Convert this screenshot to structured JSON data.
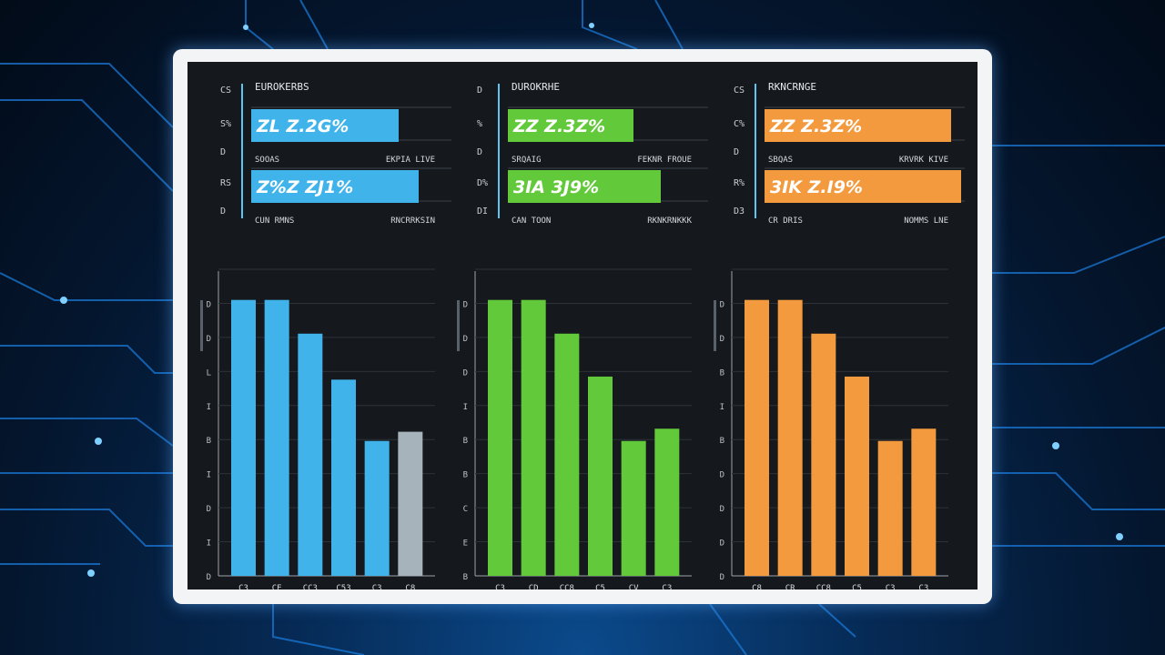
{
  "colors": {
    "blue": "#3fb3ea",
    "green": "#62c93a",
    "orange": "#f39a3e",
    "gray": "#a7b3bb"
  },
  "chart_data": [
    {
      "type": "bar",
      "orientation": "horizontal",
      "title": "EUROKERBS",
      "color": "#3fb3ea",
      "axis_labels": [
        "CS",
        "S%",
        "D",
        "RS",
        "D"
      ],
      "values": [
        0.74,
        0.84
      ],
      "value_labels": [
        "ZL Z.2G%",
        "Z%Z ZJ1%"
      ],
      "left_labels": [
        "SOOAS",
        "CUN RMNS"
      ],
      "right_labels": [
        "EKPIA LIVE",
        "RNCRRKSIN"
      ]
    },
    {
      "type": "bar",
      "orientation": "horizontal",
      "title": "DUROKRHE",
      "color": "#62c93a",
      "axis_labels": [
        "D",
        "%",
        "D",
        "D%",
        "DI"
      ],
      "values": [
        0.63,
        0.77
      ],
      "value_labels": [
        "ZZ Z.3Z%",
        "3IA 3J9%"
      ],
      "left_labels": [
        "SRQAIG",
        "CAN TOON"
      ],
      "right_labels": [
        "FEKNR FROUE",
        "RKNKRNKKK"
      ]
    },
    {
      "type": "bar",
      "orientation": "horizontal",
      "title": "RKNCRNGE",
      "color": "#f39a3e",
      "axis_labels": [
        "CS",
        "C%",
        "D",
        "R%",
        "D3"
      ],
      "values": [
        0.94,
        0.99
      ],
      "value_labels": [
        "ZZ Z.3Z%",
        "3IK Z.I9%"
      ],
      "left_labels": [
        "SBQAS",
        "CR DRIS"
      ],
      "right_labels": [
        "KRVRK KIVE",
        "NOMMS LNE"
      ]
    },
    {
      "type": "bar",
      "title": "",
      "categories": [
        "C3",
        "CE",
        "CC3",
        "C53",
        "C3",
        "C8"
      ],
      "values": [
        90,
        90,
        79,
        64,
        44,
        47
      ],
      "colors": [
        "#3fb3ea",
        "#3fb3ea",
        "#3fb3ea",
        "#3fb3ea",
        "#3fb3ea",
        "#a7b3bb"
      ],
      "ylim": [
        0,
        100
      ],
      "yticks": [
        "D",
        "I",
        "D",
        "I",
        "B",
        "I",
        "L",
        "D",
        "D",
        ""
      ],
      "ylabel": ""
    },
    {
      "type": "bar",
      "title": "",
      "categories": [
        "C3",
        "CD",
        "CC8",
        "C5",
        "CV",
        "C3"
      ],
      "values": [
        90,
        90,
        79,
        65,
        44,
        48
      ],
      "colors": [
        "#62c93a",
        "#62c93a",
        "#62c93a",
        "#62c93a",
        "#62c93a",
        "#62c93a"
      ],
      "ylim": [
        0,
        100
      ],
      "yticks": [
        "B",
        "E",
        "C",
        "B",
        "B",
        "I",
        "D",
        "D",
        "D",
        ""
      ],
      "ylabel": ""
    },
    {
      "type": "bar",
      "title": "",
      "categories": [
        "C8",
        "CR",
        "CC8",
        "C5",
        "C3",
        "C3"
      ],
      "values": [
        90,
        90,
        79,
        65,
        44,
        48
      ],
      "colors": [
        "#f39a3e",
        "#f39a3e",
        "#f39a3e",
        "#f39a3e",
        "#f39a3e",
        "#f39a3e"
      ],
      "ylim": [
        0,
        100
      ],
      "yticks": [
        "D",
        "D",
        "D",
        "D",
        "B",
        "I",
        "B",
        "D",
        "D",
        ""
      ],
      "ylabel": ""
    }
  ]
}
